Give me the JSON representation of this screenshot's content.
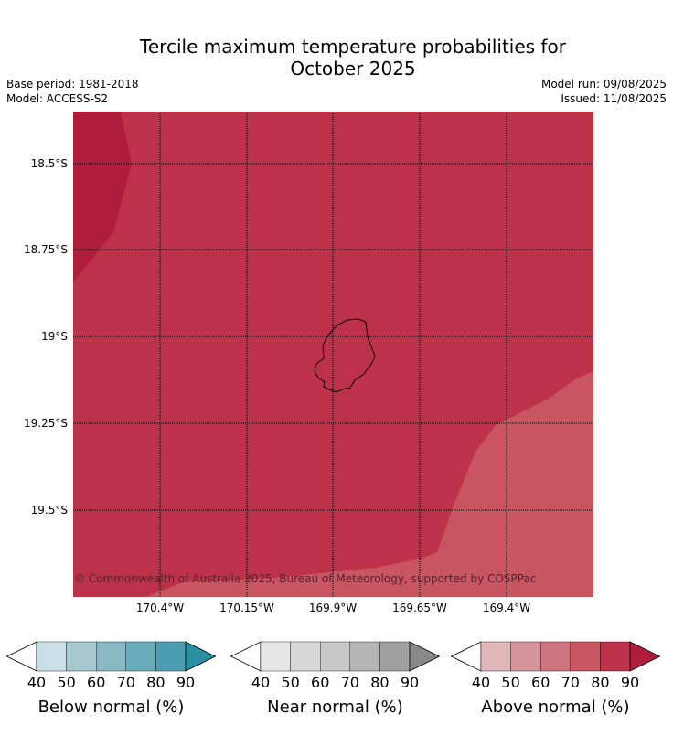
{
  "title_line1": "Tercile maximum temperature probabilities for",
  "title_line2": "October 2025",
  "base_period": "Base period: 1981-2018",
  "model": "Model: ACCESS-S2",
  "model_run": "Model run: 09/08/2025",
  "issued": "Issued: 11/08/2025",
  "lat_labels": [
    "18.5°S",
    "18.75°S",
    "19°S",
    "19.25°S",
    "19.5°S"
  ],
  "lon_labels": [
    "170.4°W",
    "170.15°W",
    "169.9°W",
    "169.65°W",
    "169.4°W"
  ],
  "copyright": "© Commonwealth of Australia 2025, Bureau of Meteorology, supported by COSPPac",
  "map_colors": {
    "above_70_80": "#c85560",
    "above_80_90": "#bd3249",
    "above_90_plus": "#b01c3c"
  },
  "colorbars": [
    {
      "caption": "Below normal (%)",
      "ticks": [
        "40",
        "50",
        "60",
        "70",
        "80",
        "90"
      ],
      "colors": [
        "#c8e0e6",
        "#a6c8ce",
        "#89b8c4",
        "#6aabbc",
        "#4b9db1",
        "#2b8fa4"
      ]
    },
    {
      "caption": "Near normal (%)",
      "ticks": [
        "40",
        "50",
        "60",
        "70",
        "80",
        "90"
      ],
      "colors": [
        "#e6e6e6",
        "#d8d8d8",
        "#c8c8c8",
        "#b4b4b4",
        "#a0a0a0",
        "#888888"
      ]
    },
    {
      "caption": "Above normal (%)",
      "ticks": [
        "40",
        "50",
        "60",
        "70",
        "80",
        "90"
      ],
      "colors": [
        "#e2b8bc",
        "#d6959d",
        "#ce747f",
        "#c85560",
        "#bd3249",
        "#b01c3c"
      ]
    }
  ]
}
